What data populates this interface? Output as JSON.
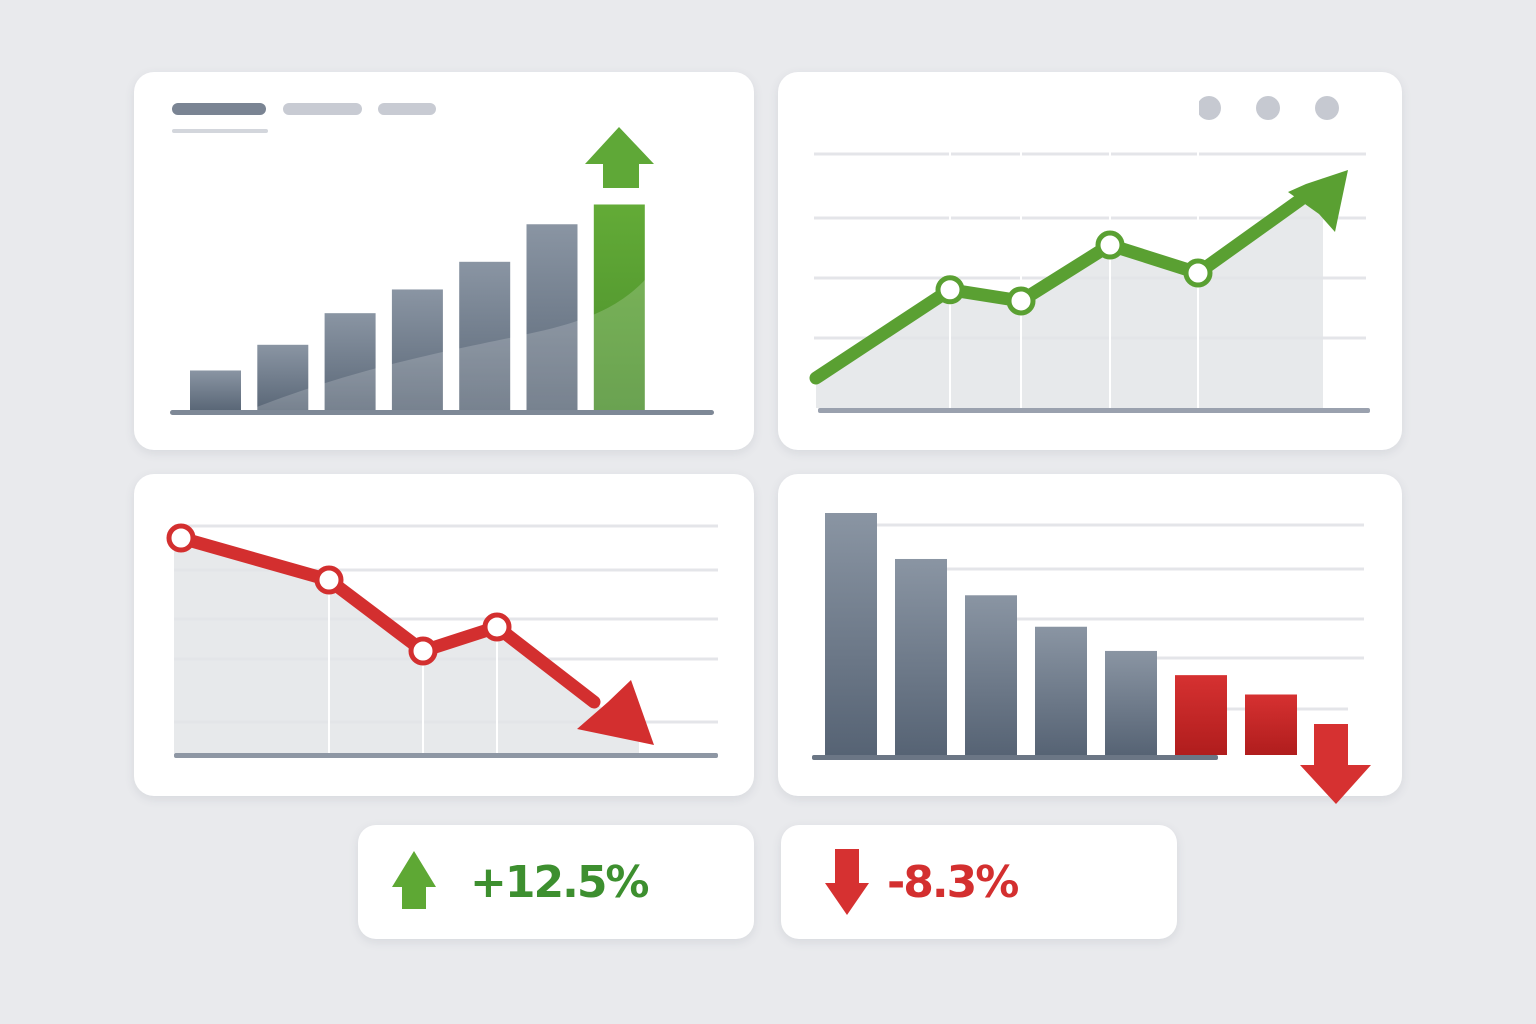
{
  "colors": {
    "background": "#e9eaed",
    "card": "#ffffff",
    "bar_gray": "#6b7685",
    "positive_green": "#5aa032",
    "negative_red": "#d32f2f",
    "gridline": "#e6e7ea",
    "axis": "#8e97a4"
  },
  "chart_data": [
    {
      "type": "bar",
      "title": "",
      "header_placeholders": [
        "title-bar",
        "subtitle-bar",
        "label-bar"
      ],
      "categories": [
        "1",
        "2",
        "3",
        "4",
        "5",
        "6",
        "7"
      ],
      "values": [
        20,
        33,
        49,
        61,
        75,
        94,
        104
      ],
      "highlight_last": true,
      "highlight_color": "#5aa032",
      "annotation": "up-arrow above last bar",
      "grid": false
    },
    {
      "type": "line",
      "title": "",
      "x": [
        0,
        1,
        2,
        3,
        4,
        5
      ],
      "values": [
        5,
        14,
        12,
        22,
        17,
        34
      ],
      "markers_at": [
        1,
        2,
        3,
        4
      ],
      "line_color": "#5aa032",
      "area_fill": true,
      "annotation": "upward arrow head at end",
      "window_dots": 3,
      "grid": true
    },
    {
      "type": "line",
      "title": "",
      "x": [
        0,
        1,
        2,
        3,
        4
      ],
      "values": [
        35,
        27,
        17,
        21,
        2
      ],
      "markers_at": [
        0,
        1,
        2,
        3
      ],
      "line_color": "#d32f2f",
      "area_fill": true,
      "annotation": "downward arrow head at end",
      "grid": true
    },
    {
      "type": "bar",
      "title": "",
      "categories": [
        "1",
        "2",
        "3",
        "4",
        "5",
        "6",
        "7"
      ],
      "values": [
        100,
        81,
        66,
        53,
        43,
        33,
        25
      ],
      "highlight_from_index": 5,
      "highlight_color": "#d32f2f",
      "annotation": "down-arrow after last bar",
      "grid": true
    }
  ],
  "stats": [
    {
      "label": "+12.5%",
      "direction": "up",
      "color": "#3d8f2f"
    },
    {
      "label": "-8.3%",
      "direction": "down",
      "color": "#d32f2f"
    }
  ]
}
